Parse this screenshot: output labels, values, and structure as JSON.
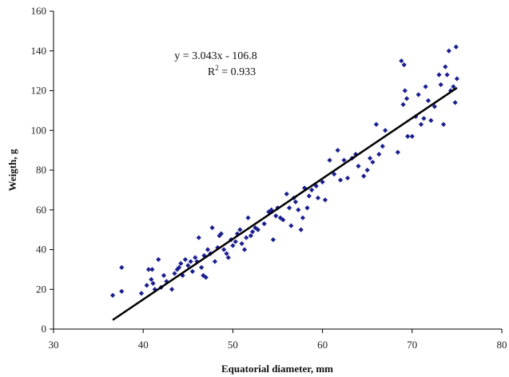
{
  "chart_data": {
    "type": "scatter",
    "xlabel": "Equatorial  diameter, mm",
    "ylabel": "Weigth, g",
    "xlim": [
      30,
      80
    ],
    "ylim": [
      0,
      160
    ],
    "x_ticks": [
      30,
      40,
      50,
      60,
      70,
      80
    ],
    "y_ticks": [
      0,
      20,
      40,
      60,
      80,
      100,
      120,
      140,
      160
    ],
    "grid": false,
    "legend": "none",
    "point_color": "#1a1f8f",
    "line_color": "#000000",
    "annotation": {
      "equation": "y = 3.043x - 106.8",
      "r2_prefix": "R",
      "r2_sup": "2",
      "r2_suffix": " = 0.933"
    },
    "trendline": {
      "slope": 3.043,
      "intercept": -106.8,
      "x_range": [
        36.6,
        75
      ]
    },
    "points": [
      [
        36.6,
        17
      ],
      [
        37.6,
        19
      ],
      [
        37.6,
        31
      ],
      [
        39.8,
        18
      ],
      [
        40.4,
        22
      ],
      [
        40.6,
        30
      ],
      [
        40.9,
        25
      ],
      [
        41.0,
        30
      ],
      [
        41.1,
        23
      ],
      [
        41.3,
        20
      ],
      [
        41.7,
        35
      ],
      [
        42.0,
        21
      ],
      [
        42.3,
        27
      ],
      [
        42.6,
        24
      ],
      [
        43.2,
        20
      ],
      [
        43.5,
        28
      ],
      [
        43.8,
        30
      ],
      [
        44.0,
        31
      ],
      [
        44.2,
        33
      ],
      [
        44.4,
        27
      ],
      [
        44.7,
        35
      ],
      [
        45.0,
        32
      ],
      [
        45.3,
        34
      ],
      [
        45.5,
        29
      ],
      [
        45.8,
        36
      ],
      [
        46.0,
        34
      ],
      [
        46.2,
        46
      ],
      [
        46.5,
        31
      ],
      [
        46.7,
        27
      ],
      [
        46.8,
        37
      ],
      [
        47.0,
        26
      ],
      [
        47.2,
        40
      ],
      [
        47.5,
        38
      ],
      [
        47.7,
        51
      ],
      [
        48.0,
        34
      ],
      [
        48.3,
        41
      ],
      [
        48.5,
        47
      ],
      [
        48.7,
        48
      ],
      [
        49.0,
        40
      ],
      [
        49.3,
        38
      ],
      [
        49.5,
        36
      ],
      [
        49.8,
        45
      ],
      [
        50.0,
        42
      ],
      [
        50.3,
        44
      ],
      [
        50.5,
        48
      ],
      [
        50.8,
        50
      ],
      [
        51.0,
        43
      ],
      [
        51.3,
        40
      ],
      [
        51.5,
        46
      ],
      [
        51.7,
        56
      ],
      [
        52.0,
        47
      ],
      [
        52.2,
        49
      ],
      [
        52.5,
        51
      ],
      [
        52.8,
        50
      ],
      [
        53.5,
        53
      ],
      [
        54.0,
        59
      ],
      [
        54.3,
        60
      ],
      [
        54.5,
        45
      ],
      [
        54.8,
        57
      ],
      [
        55.0,
        61
      ],
      [
        55.3,
        56
      ],
      [
        55.6,
        55
      ],
      [
        56.0,
        68
      ],
      [
        56.3,
        61
      ],
      [
        56.5,
        52
      ],
      [
        56.8,
        66
      ],
      [
        57.0,
        64
      ],
      [
        57.3,
        60
      ],
      [
        57.6,
        50
      ],
      [
        57.8,
        56
      ],
      [
        58.0,
        71
      ],
      [
        58.3,
        61
      ],
      [
        58.5,
        67
      ],
      [
        58.8,
        70
      ],
      [
        59.3,
        72
      ],
      [
        59.5,
        66
      ],
      [
        60.0,
        74
      ],
      [
        60.3,
        65
      ],
      [
        60.8,
        85
      ],
      [
        61.3,
        78
      ],
      [
        61.7,
        90
      ],
      [
        62.0,
        75
      ],
      [
        62.4,
        85
      ],
      [
        62.8,
        76
      ],
      [
        63.3,
        86
      ],
      [
        63.7,
        88
      ],
      [
        64.0,
        82
      ],
      [
        64.6,
        77
      ],
      [
        65.0,
        80
      ],
      [
        65.3,
        86
      ],
      [
        65.6,
        84
      ],
      [
        66.0,
        103
      ],
      [
        66.3,
        88
      ],
      [
        66.7,
        92
      ],
      [
        67.0,
        100
      ],
      [
        68.4,
        89
      ],
      [
        68.8,
        135
      ],
      [
        69.0,
        113
      ],
      [
        69.1,
        133
      ],
      [
        69.2,
        120
      ],
      [
        69.4,
        116
      ],
      [
        69.5,
        97
      ],
      [
        70.0,
        97
      ],
      [
        70.4,
        107
      ],
      [
        70.7,
        118
      ],
      [
        71.0,
        103
      ],
      [
        71.3,
        106
      ],
      [
        71.5,
        122
      ],
      [
        71.8,
        115
      ],
      [
        72.1,
        105
      ],
      [
        72.5,
        112
      ],
      [
        73.0,
        128
      ],
      [
        73.2,
        123
      ],
      [
        73.5,
        103
      ],
      [
        73.7,
        132
      ],
      [
        73.9,
        128
      ],
      [
        74.1,
        140
      ],
      [
        74.3,
        120
      ],
      [
        74.6,
        122
      ],
      [
        74.8,
        114
      ],
      [
        74.9,
        142
      ],
      [
        75.0,
        126
      ]
    ]
  }
}
